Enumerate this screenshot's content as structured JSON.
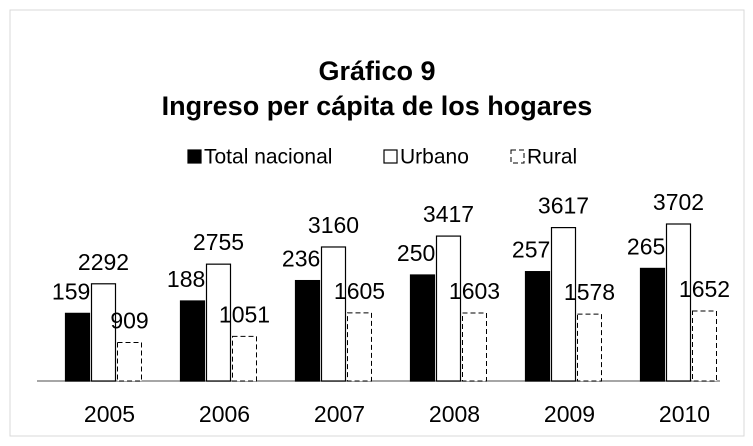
{
  "chart_data": {
    "type": "bar",
    "title": "Gráfico 9",
    "subtitle": "Ingreso per cápita de los hogares",
    "categories": [
      "2005",
      "2006",
      "2007",
      "2008",
      "2009",
      "2010"
    ],
    "series": [
      {
        "name": "Total nacional",
        "color": "#000000",
        "values": [
          1595,
          1887,
          2368,
          2500,
          2579,
          2655
        ]
      },
      {
        "name": "Urbano",
        "color": "#ffffff",
        "values": [
          2292,
          2755,
          3160,
          3417,
          3617,
          3702
        ]
      },
      {
        "name": "Rural",
        "color": "#ffffff",
        "values": [
          909,
          1051,
          1605,
          1603,
          1578,
          1652
        ]
      }
    ],
    "legend": "top"
  }
}
